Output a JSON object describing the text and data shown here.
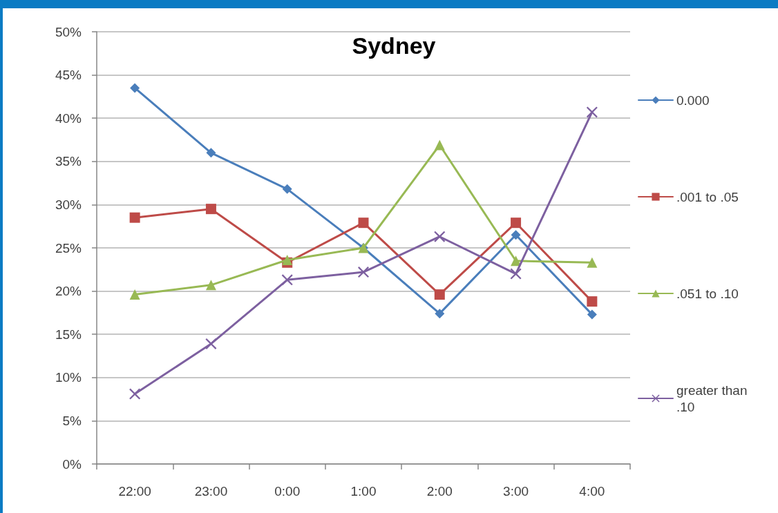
{
  "chart_data": {
    "type": "line",
    "title": "Sydney",
    "categories": [
      "22:00",
      "23:00",
      "0:00",
      "1:00",
      "2:00",
      "3:00",
      "4:00"
    ],
    "series": [
      {
        "name": "0.000",
        "color": "#4a7ebb",
        "marker": "diamond",
        "values": [
          43.5,
          36.0,
          31.8,
          25.0,
          17.4,
          26.5,
          17.3
        ]
      },
      {
        "name": ".001 to .05",
        "color": "#be4b48",
        "marker": "square",
        "values": [
          28.5,
          29.5,
          23.3,
          27.9,
          19.6,
          27.9,
          18.8
        ]
      },
      {
        "name": ".051 to .10",
        "color": "#98b954",
        "marker": "triangle",
        "values": [
          19.6,
          20.7,
          23.6,
          25.0,
          36.9,
          23.5,
          23.3
        ]
      },
      {
        "name": "greater than .10",
        "color": "#7d60a0",
        "marker": "cross",
        "values": [
          8.1,
          13.9,
          21.3,
          22.2,
          26.3,
          22.0,
          40.7
        ]
      }
    ],
    "ylim": [
      0,
      50
    ],
    "yticks": [
      {
        "value": 0,
        "label": "0%"
      },
      {
        "value": 5,
        "label": "5%"
      },
      {
        "value": 10,
        "label": "10%"
      },
      {
        "value": 15,
        "label": "15%"
      },
      {
        "value": 20,
        "label": "20%"
      },
      {
        "value": 25,
        "label": "25%"
      },
      {
        "value": 30,
        "label": "30%"
      },
      {
        "value": 35,
        "label": "35%"
      },
      {
        "value": 40,
        "label": "40%"
      },
      {
        "value": 45,
        "label": "45%"
      },
      {
        "value": 50,
        "label": "50%"
      }
    ],
    "grid": "y",
    "legend": "right",
    "line_style": "solid"
  }
}
